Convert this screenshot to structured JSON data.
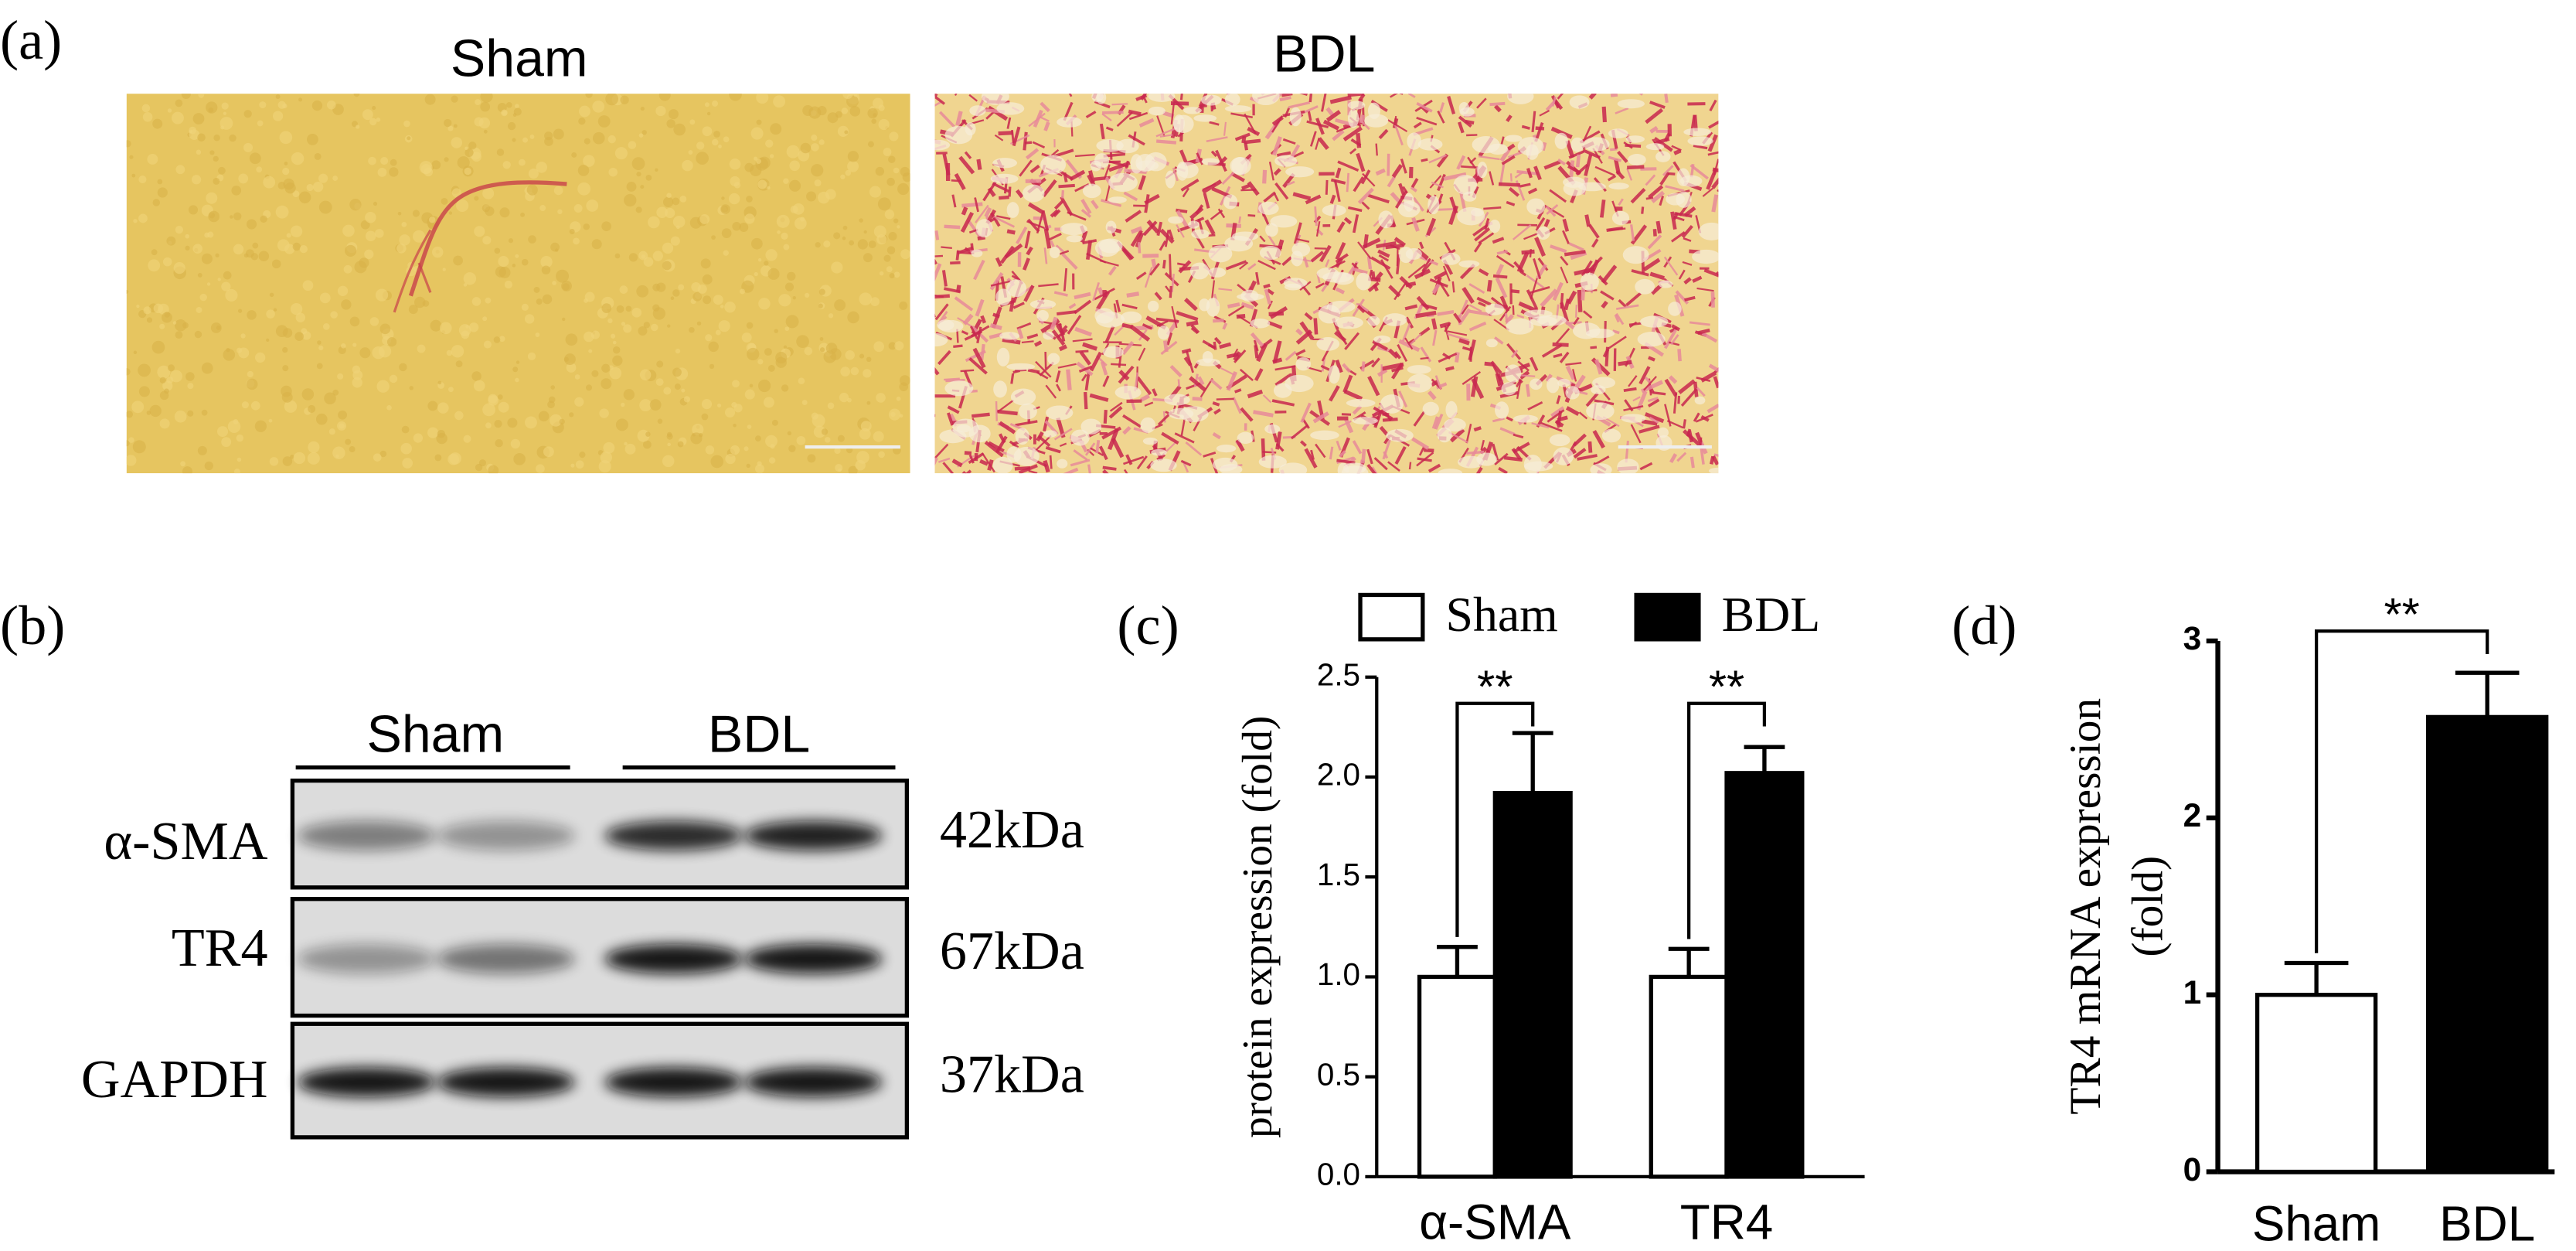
{
  "panel_labels": [
    "(a)",
    "(b)",
    "(c)",
    "(d)"
  ],
  "histology": {
    "labels": [
      "Sham",
      "BDL"
    ]
  },
  "blot": {
    "groups": [
      "Sham",
      "BDL"
    ],
    "rows": [
      {
        "protein": "α-SMA",
        "size": "42kDa"
      },
      {
        "protein": "TR4",
        "size": "67kDa"
      },
      {
        "protein": "GAPDH",
        "size": "37kDa"
      }
    ]
  },
  "chart_data": [
    {
      "type": "bar",
      "ylabel": "protein expression (fold)",
      "categories": [
        "α-SMA",
        "TR4"
      ],
      "series": [
        {
          "name": "Sham",
          "color": "#ffffff",
          "values": [
            1.0,
            1.0
          ],
          "errors": [
            0.15,
            0.14
          ]
        },
        {
          "name": "BDL",
          "color": "#000000",
          "values": [
            1.92,
            2.02
          ],
          "errors": [
            0.3,
            0.13
          ]
        }
      ],
      "ylim": [
        0,
        2.5
      ],
      "yticks": [
        {
          "value": 0,
          "label": "0.0"
        },
        0.5,
        {
          "value": 1,
          "label": "1.0"
        },
        1.5,
        {
          "value": 2,
          "label": "2.0"
        },
        2.5
      ],
      "annotations": [
        "**",
        "**"
      ]
    },
    {
      "type": "bar",
      "ylabel": [
        "TR4 mRNA expression",
        "(fold)"
      ],
      "categories": [
        "Sham",
        "BDL"
      ],
      "values": [
        1.0,
        2.57
      ],
      "errors": [
        0.18,
        0.25
      ],
      "colors": [
        "#ffffff",
        "#000000"
      ],
      "ylim": [
        0,
        3
      ],
      "yticks": [
        0,
        1,
        2,
        3
      ],
      "annotations": [
        "**"
      ]
    }
  ]
}
